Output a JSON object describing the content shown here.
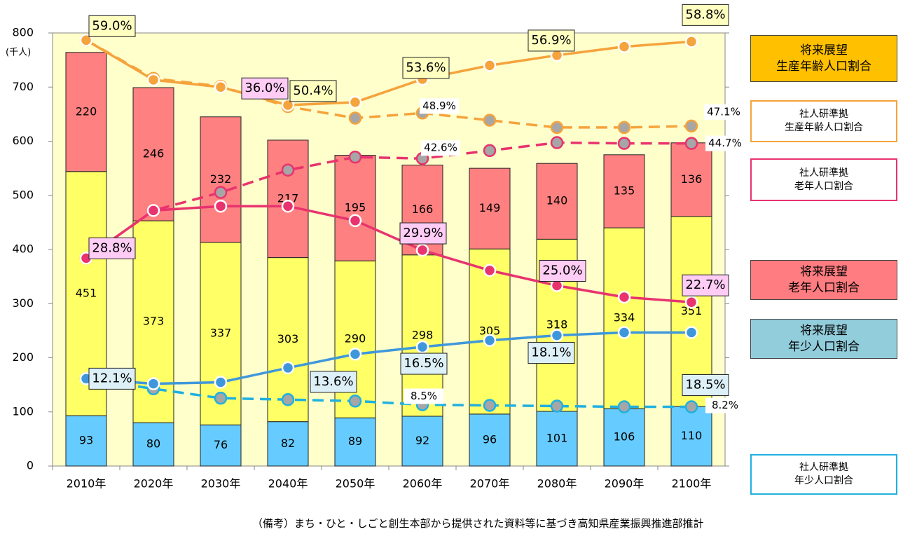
{
  "chart_data": {
    "type": "bar",
    "stacked": true,
    "y_label": "(千人)",
    "note": "（備考）まち・ひと・しごと創生本部から提供された資料等に基づき高知県産業振興推進部推計",
    "categories": [
      "2010年",
      "2020年",
      "2030年",
      "2040年",
      "2050年",
      "2060年",
      "2070年",
      "2080年",
      "2090年",
      "2100年"
    ],
    "ylim": [
      0,
      800
    ],
    "yticks": [
      0,
      100,
      200,
      300,
      400,
      500,
      600,
      700,
      800
    ],
    "y2lim": [
      0,
      60
    ],
    "plot_background": "#ffffcc",
    "series": [
      {
        "type": "bar",
        "axis": "y",
        "color": "#66ccff",
        "values": [
          93,
          80,
          76,
          82,
          89,
          92,
          96,
          101,
          106,
          110
        ]
      },
      {
        "type": "bar",
        "axis": "y",
        "color": "#ffff66",
        "values": [
          451,
          373,
          337,
          303,
          290,
          298,
          305,
          318,
          334,
          351
        ]
      },
      {
        "type": "bar",
        "axis": "y",
        "color": "#ff8080",
        "values": [
          220,
          246,
          232,
          217,
          195,
          166,
          149,
          140,
          135,
          136
        ]
      },
      {
        "type": "line",
        "axis": "y2",
        "name": "将来展望\n生産年齢人口割合",
        "color": "#f5a33c",
        "dashed": false,
        "legend_fill": "#ffc000",
        "values": [
          59.0,
          53.5,
          52.5,
          50.0,
          50.4,
          53.6,
          55.5,
          56.9,
          58.1,
          58.8
        ],
        "value_labels": [
          "59.0%",
          null,
          null,
          null,
          "50.4%",
          "53.6%",
          null,
          "56.9%",
          null,
          "58.8%"
        ]
      },
      {
        "type": "line",
        "axis": "y2",
        "name": "社人研準拠\n生産年齢人口割合",
        "color": "#f5a33c",
        "dashed": true,
        "values": [
          59.0,
          53.7,
          52.6,
          49.8,
          48.2,
          48.9,
          47.9,
          46.9,
          46.9,
          47.1
        ],
        "value_labels": [
          null,
          null,
          null,
          null,
          null,
          "48.9%",
          null,
          null,
          null,
          "47.1%"
        ]
      },
      {
        "type": "line",
        "axis": "y2",
        "name": "社人研準拠\n老年人口割合",
        "color": "#e8336e",
        "dashed": true,
        "values": [
          28.8,
          35.4,
          37.9,
          41.0,
          42.8,
          42.6,
          43.7,
          44.8,
          44.7,
          44.7
        ],
        "value_labels": [
          null,
          null,
          null,
          null,
          null,
          "42.6%",
          null,
          null,
          null,
          "44.7%"
        ]
      },
      {
        "type": "line",
        "axis": "y2",
        "name": "将来展望\n老年人口割合",
        "color": "#e8336e",
        "dashed": false,
        "legend_fill": "#ff7c80",
        "values": [
          28.8,
          35.4,
          36.0,
          36.0,
          34.0,
          29.9,
          27.1,
          25.0,
          23.4,
          22.7
        ],
        "value_labels": [
          "28.8%",
          null,
          null,
          "36.0%",
          null,
          "29.9%",
          null,
          "25.0%",
          null,
          "22.7%"
        ]
      },
      {
        "type": "line",
        "axis": "y2",
        "name": "将来展望\n年少人口割合",
        "color": "#3f97db",
        "dashed": false,
        "legend_fill": "#92cddc",
        "values": [
          12.1,
          11.4,
          11.6,
          13.6,
          15.5,
          16.5,
          17.4,
          18.1,
          18.5,
          18.5
        ],
        "value_labels": [
          "12.1%",
          null,
          null,
          "13.6%",
          null,
          "16.5%",
          null,
          "18.1%",
          null,
          "18.5%"
        ]
      },
      {
        "type": "line",
        "axis": "y2",
        "name": "社人研準拠\n年少人口割合",
        "color": "#1fb0e0",
        "dashed": true,
        "values": [
          12.1,
          10.7,
          9.4,
          9.2,
          9.0,
          8.5,
          8.4,
          8.3,
          8.2,
          8.2
        ],
        "value_labels": [
          null,
          null,
          null,
          null,
          null,
          "8.5%",
          null,
          null,
          null,
          "8.2%"
        ]
      }
    ]
  }
}
